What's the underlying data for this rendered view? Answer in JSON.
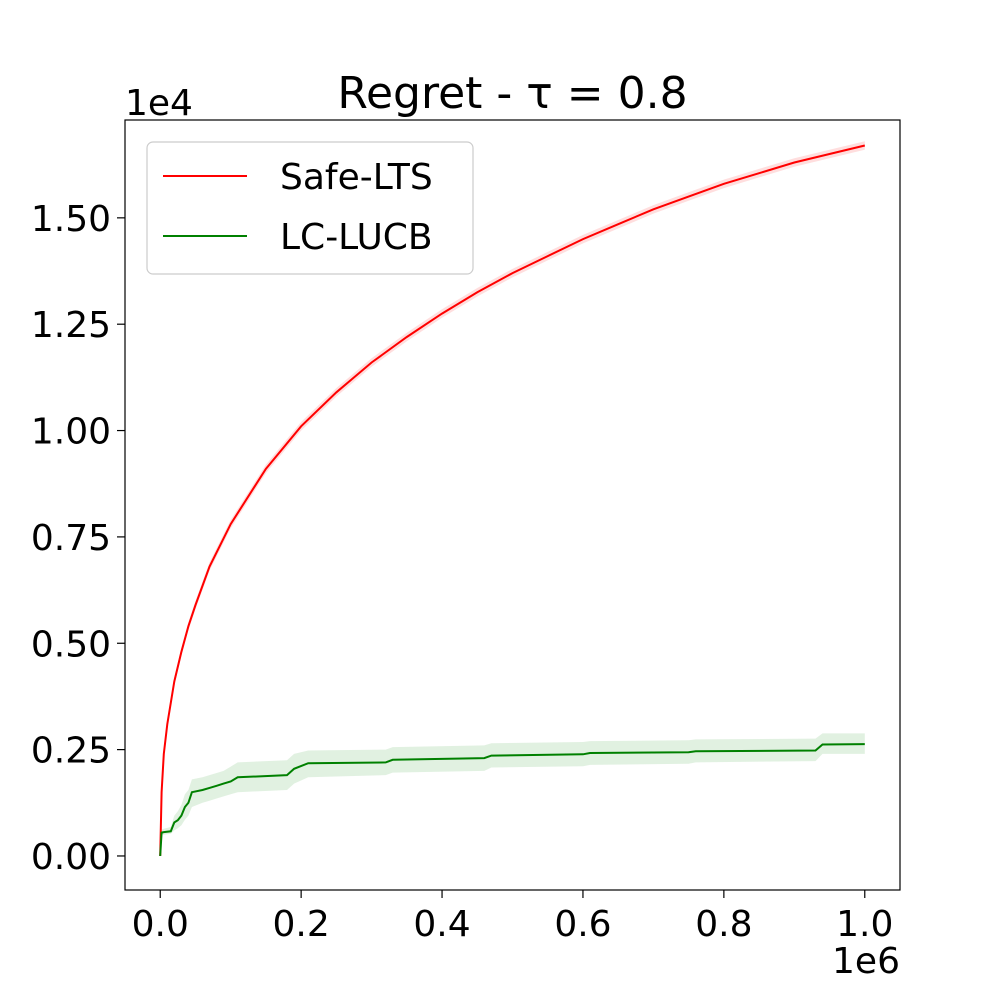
{
  "chart_data": {
    "type": "line",
    "title": "Regret - τ = 0.8",
    "x_offset_label": "1e6",
    "y_offset_label": "1e4",
    "xlim": [
      -50000,
      1050000
    ],
    "ylim": [
      -800,
      17300
    ],
    "x_ticks": [
      0,
      200000,
      400000,
      600000,
      800000,
      1000000
    ],
    "x_tick_labels": [
      "0.0",
      "0.2",
      "0.4",
      "0.6",
      "0.8",
      "1.0"
    ],
    "y_ticks": [
      0,
      2500,
      5000,
      7500,
      10000,
      12500,
      15000
    ],
    "y_tick_labels": [
      "0.00",
      "0.25",
      "0.50",
      "0.75",
      "1.00",
      "1.25",
      "1.50"
    ],
    "legend_position": "upper-left",
    "series": [
      {
        "name": "Safe-LTS",
        "color": "#ff0000",
        "band_color": "#ffd6d6",
        "x": [
          0,
          2000,
          5000,
          10000,
          20000,
          30000,
          40000,
          50000,
          70000,
          100000,
          150000,
          200000,
          250000,
          300000,
          350000,
          400000,
          450000,
          500000,
          550000,
          600000,
          650000,
          700000,
          750000,
          800000,
          850000,
          900000,
          950000,
          1000000
        ],
        "y": [
          0,
          1500,
          2400,
          3100,
          4100,
          4800,
          5400,
          5900,
          6800,
          7800,
          9100,
          10100,
          10900,
          11600,
          12200,
          12750,
          13250,
          13700,
          14100,
          14500,
          14850,
          15200,
          15500,
          15800,
          16050,
          16300,
          16500,
          16700
        ],
        "band": 100
      },
      {
        "name": "LC-LUCB",
        "color": "#008000",
        "band_color": "#d9eed9",
        "x": [
          0,
          2000,
          5000,
          15000,
          20000,
          25000,
          30000,
          35000,
          40000,
          45000,
          60000,
          70000,
          80000,
          90000,
          100000,
          110000,
          180000,
          190000,
          210000,
          320000,
          330000,
          460000,
          470000,
          600000,
          610000,
          750000,
          760000,
          930000,
          940000,
          1000000
        ],
        "y": [
          0,
          550,
          560,
          580,
          790,
          840,
          950,
          1150,
          1250,
          1500,
          1550,
          1600,
          1650,
          1700,
          1750,
          1850,
          1900,
          2050,
          2180,
          2200,
          2260,
          2300,
          2360,
          2390,
          2420,
          2440,
          2460,
          2480,
          2620,
          2630
        ],
        "band_lower": [
          0,
          500,
          500,
          520,
          600,
          650,
          720,
          850,
          950,
          1150,
          1250,
          1300,
          1350,
          1400,
          1450,
          1500,
          1550,
          1700,
          1850,
          1900,
          1960,
          2000,
          2080,
          2110,
          2140,
          2170,
          2200,
          2230,
          2400,
          2400
        ],
        "band_upper": [
          0,
          620,
          640,
          680,
          950,
          1050,
          1200,
          1450,
          1550,
          1800,
          1850,
          1900,
          1950,
          2000,
          2100,
          2200,
          2250,
          2400,
          2480,
          2500,
          2560,
          2600,
          2650,
          2680,
          2700,
          2720,
          2740,
          2760,
          2880,
          2880
        ]
      }
    ]
  }
}
